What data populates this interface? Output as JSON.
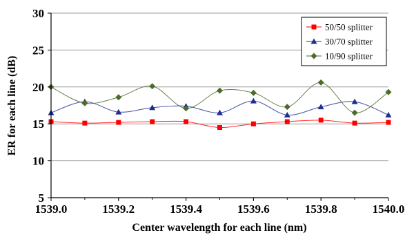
{
  "chart_data": {
    "type": "line",
    "xlabel": "Center wavelength for each line (nm)",
    "ylabel": "ER for each line (dB)",
    "xlim": [
      1539.0,
      1540.0
    ],
    "ylim": [
      5,
      30
    ],
    "xticks": [
      "1539.0",
      "1539.2",
      "1539.4",
      "1539.6",
      "1539.8",
      "1540.0"
    ],
    "yticks": [
      "5",
      "10",
      "15",
      "20",
      "25",
      "30"
    ],
    "x": [
      1539.0,
      1539.1,
      1539.2,
      1539.3,
      1539.4,
      1539.5,
      1539.6,
      1539.7,
      1539.8,
      1539.9,
      1540.0
    ],
    "grid": "horizontal",
    "legend": "top-right",
    "series": [
      {
        "name": "50/50 splitter",
        "color": "#ff0000",
        "marker": "square",
        "values": [
          15.3,
          15.1,
          15.2,
          15.3,
          15.3,
          14.5,
          15.0,
          15.3,
          15.5,
          15.1,
          15.2
        ]
      },
      {
        "name": "30/70 splitter",
        "color": "#1f2f8f",
        "marker": "triangle",
        "values": [
          16.5,
          18.0,
          16.6,
          17.2,
          17.4,
          16.5,
          18.1,
          16.2,
          17.3,
          18.0,
          16.2
        ]
      },
      {
        "name": "10/90 splitter",
        "color": "#4d6b2a",
        "marker": "diamond",
        "values": [
          20.0,
          17.8,
          18.6,
          20.1,
          17.1,
          19.5,
          19.2,
          17.3,
          20.6,
          16.5,
          19.3
        ]
      }
    ]
  }
}
